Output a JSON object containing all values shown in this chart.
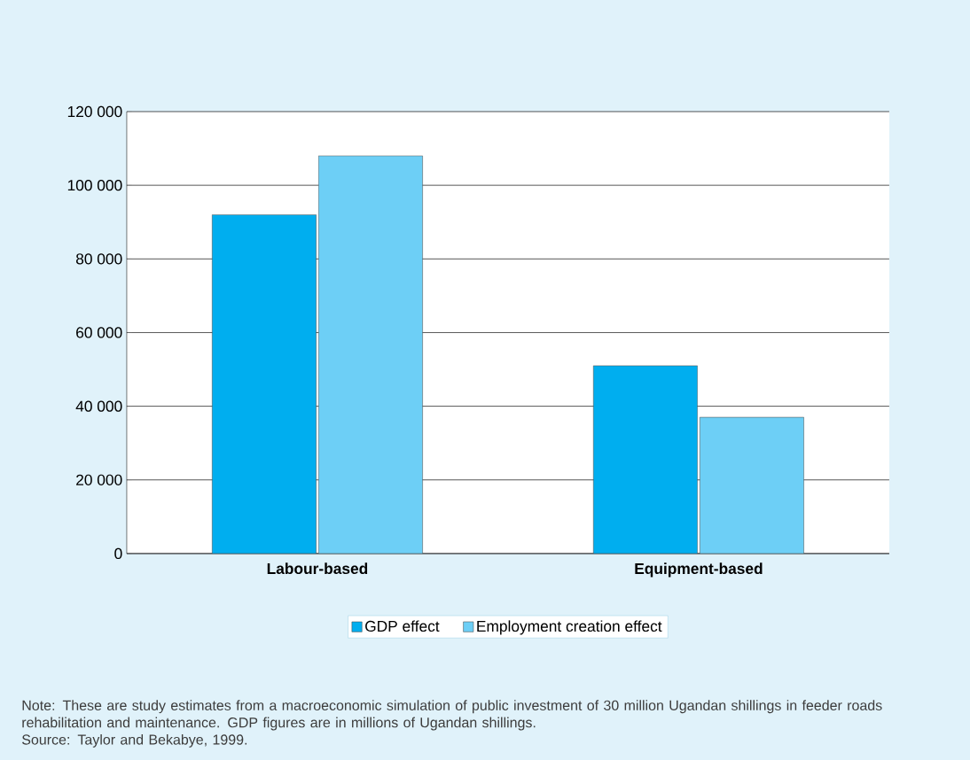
{
  "chart_data": {
    "type": "bar",
    "categories": [
      "Labour-based",
      "Equipment-based"
    ],
    "series": [
      {
        "name": "GDP effect",
        "color": "#00aeef",
        "values": [
          92000,
          51000
        ]
      },
      {
        "name": "Employment creation effect",
        "color": "#6dcff6",
        "values": [
          108000,
          37000
        ]
      }
    ],
    "ylim": [
      0,
      120000
    ],
    "yticks": [
      {
        "value": 0,
        "label": "0"
      },
      {
        "value": 20000,
        "label": "20 000"
      },
      {
        "value": 40000,
        "label": "40 000"
      },
      {
        "value": 60000,
        "label": "60 000"
      },
      {
        "value": 80000,
        "label": "80 000"
      },
      {
        "value": 100000,
        "label": "100 000"
      },
      {
        "value": 120000,
        "label": "120 000"
      }
    ],
    "grid": "y",
    "legend": "bottom",
    "annotations": [
      "Note: These are study estimates from a macroeconomic simulation of public investment of 30 million Ugandan shillings in feeder roads rehabilitation and maintenance. GDP figures are in millions of Ugandan shillings.",
      "Source: Taylor and Bekabye, 1999."
    ]
  }
}
